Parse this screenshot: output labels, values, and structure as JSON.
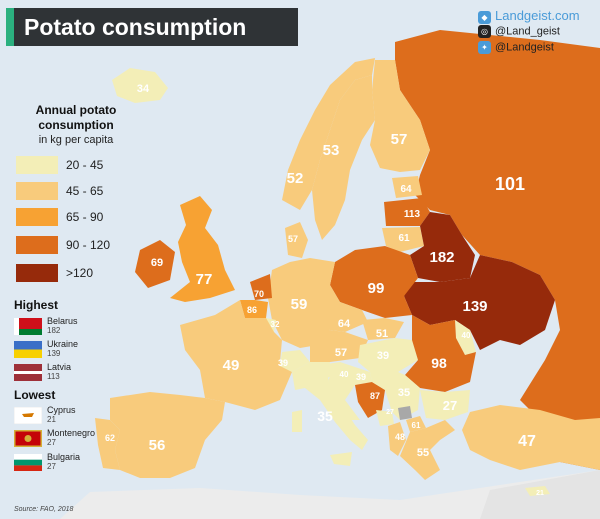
{
  "title": "Potato consumption",
  "social": [
    {
      "icon": "landgeist-logo-icon",
      "text": "Landgeist.com",
      "color": "#4a9bd8"
    },
    {
      "icon": "instagram-icon",
      "text": "@Land_geist",
      "color": "#222222"
    },
    {
      "icon": "twitter-icon",
      "text": "@Landgeist",
      "color": "#4a9bd8"
    }
  ],
  "legend": {
    "title_line1": "Annual potato",
    "title_line2": "consumption",
    "subtitle": "in kg per capita",
    "bins": [
      {
        "label": "20 - 45",
        "color": "#f3eeb7"
      },
      {
        "label": "45 - 65",
        "color": "#f8cb7c"
      },
      {
        "label": "65 - 90",
        "color": "#f7a233"
      },
      {
        "label": "90 - 120",
        "color": "#dd6d1c"
      },
      {
        "label": ">120",
        "color": "#962a0b"
      }
    ]
  },
  "highest": {
    "title": "Highest",
    "items": [
      {
        "country": "Belarus",
        "value": "182",
        "flag": "belarus-flag-icon"
      },
      {
        "country": "Ukraine",
        "value": "139",
        "flag": "ukraine-flag-icon"
      },
      {
        "country": "Latvia",
        "value": "113",
        "flag": "latvia-flag-icon"
      }
    ]
  },
  "lowest": {
    "title": "Lowest",
    "items": [
      {
        "country": "Cyprus",
        "value": "21",
        "flag": "cyprus-flag-icon"
      },
      {
        "country": "Montenegro",
        "value": "27",
        "flag": "montenegro-flag-icon"
      },
      {
        "country": "Bulgaria",
        "value": "27",
        "flag": "bulgaria-flag-icon"
      }
    ]
  },
  "map_values": {
    "iceland": "34",
    "norway": "53",
    "sweden": "52",
    "finland": "57",
    "russia": "101",
    "estonia": "64",
    "latvia": "113",
    "lithuania": "61",
    "belarus": "182",
    "ukraine": "139",
    "moldova": "40",
    "poland": "99",
    "ireland": "69",
    "uk": "77",
    "denmark": "57",
    "netherlands": "70",
    "belgium": "86",
    "luxembourg": "32",
    "germany": "59",
    "czechia": "64",
    "slovakia": "51",
    "austria": "57",
    "hungary": "39",
    "switzerland": "39",
    "slovenia": "40",
    "croatia": "39",
    "bosnia": "87",
    "serbia": "35",
    "montenegro": "27",
    "albania": "48",
    "macedonia": "61",
    "bulgaria": "27",
    "romania": "98",
    "greece": "55",
    "italy": "35",
    "france": "49",
    "spain": "56",
    "portugal": "62",
    "turkey": "47",
    "cyprus": "21"
  },
  "source": "Source: FAO, 2018"
}
